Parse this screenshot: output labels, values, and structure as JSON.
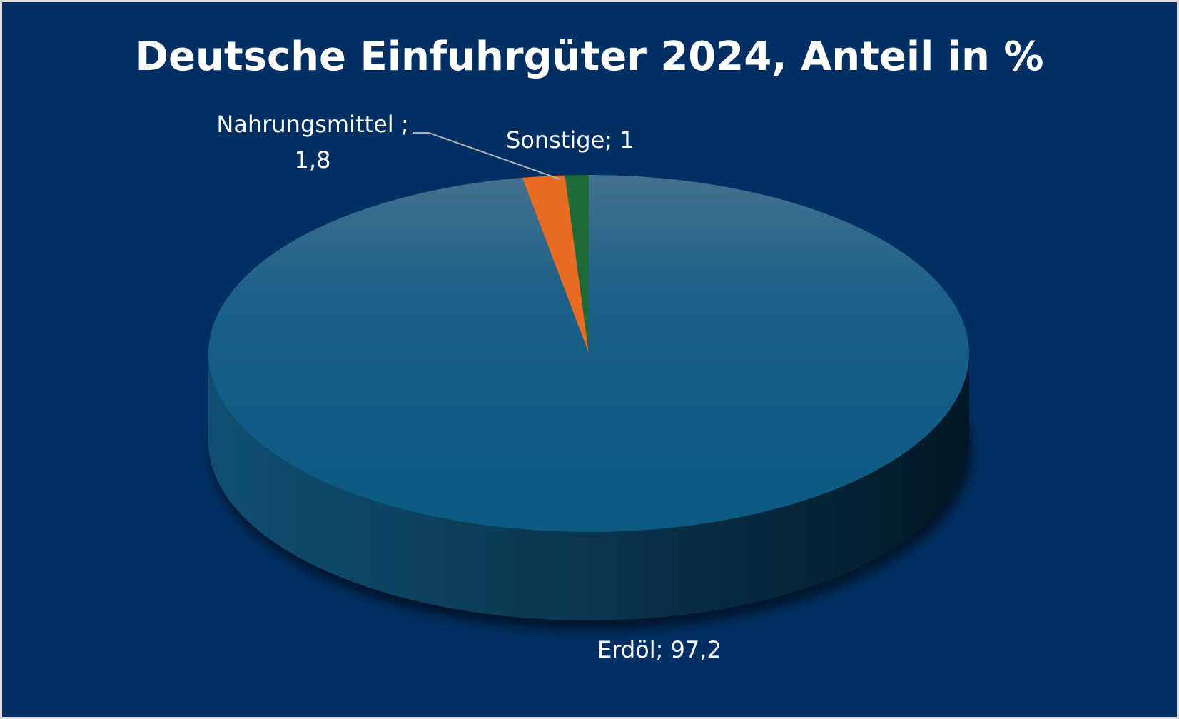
{
  "chart_data": {
    "type": "pie",
    "title": "Deutsche Einfuhrgüter 2024, Anteil in %",
    "slices": [
      {
        "name": "Erdöl",
        "value": 97.2,
        "label": "Erdöl; 97,2",
        "color": "#0f5a86"
      },
      {
        "name": "Nahrungsmittel",
        "value": 1.8,
        "label_line1": "Nahrungsmittel ;",
        "label_line2": "1,8",
        "color": "#e86a23"
      },
      {
        "name": "Sonstige",
        "value": 1.0,
        "label": "Sonstige; 1",
        "color": "#1d6b36"
      }
    ],
    "background": "#003063",
    "legend": "none",
    "style": "3d-pie"
  }
}
